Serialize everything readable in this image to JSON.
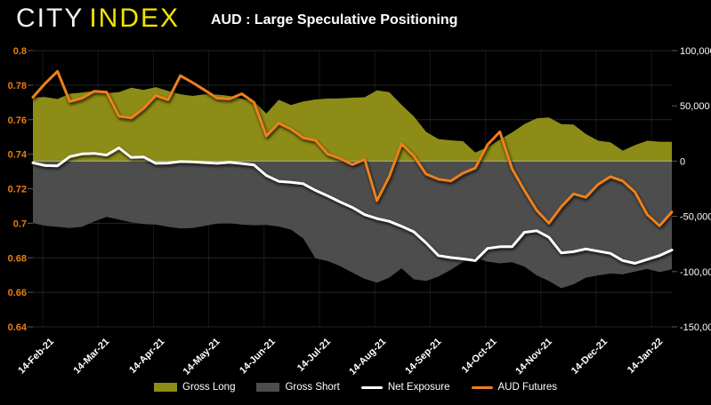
{
  "header": {
    "logo_primary": "CITY",
    "logo_secondary": "INDEX",
    "title": "AUD : Large Speculative Positioning"
  },
  "colors": {
    "background": "#000000",
    "gross_long_fill": "#8d8c17",
    "gross_short_fill": "#4d4d4d",
    "net_exposure_line": "#ffffff",
    "aud_futures_line": "#f08019",
    "left_axis_text": "#e87e0f",
    "right_axis_text": "#ffffff",
    "x_axis_text": "#ffffff",
    "grid_line": "rgba(255,255,255,0.14)",
    "zero_line": "rgba(255,255,255,0.5)"
  },
  "legend": {
    "items": [
      {
        "label": "Gross Long",
        "type": "area",
        "color": "#8d8c17"
      },
      {
        "label": "Gross Short",
        "type": "area",
        "color": "#4d4d4d"
      },
      {
        "label": "Net Exposure",
        "type": "line",
        "color": "#ffffff"
      },
      {
        "label": "AUD Futures",
        "type": "line",
        "color": "#f08019"
      }
    ]
  },
  "chart_data": {
    "type": "combo",
    "title": "AUD : Large Speculative Positioning",
    "description": "Weekly CFTC-style speculative positioning in AUD futures (right axis, contracts) vs AUD futures price (left axis), Feb 2021 - Jan 2022",
    "grid": true,
    "legend_position": "bottom",
    "x_axis": {
      "labels": [
        "14-Feb-21",
        "14-Mar-21",
        "14-Apr-21",
        "14-May-21",
        "14-Jun-21",
        "14-Jul-21",
        "14-Aug-21",
        "14-Sep-21",
        "14-Oct-21",
        "14-Nov-21",
        "14-Dec-21",
        "14-Jan-22"
      ],
      "first_tick_frac": 0.0153,
      "tick_spacing_frac": 0.08663,
      "points": 53,
      "frequency": "weekly"
    },
    "left_axis": {
      "applies_to": "AUD Futures price",
      "min": 0.64,
      "max": 0.8,
      "tick_step": 0.02,
      "labels": [
        "0.8",
        "0.78",
        "0.76",
        "0.74",
        "0.72",
        "0.7",
        "0.68",
        "0.66",
        "0.64"
      ]
    },
    "right_axis": {
      "applies_to": "Positioning (contracts)",
      "min": -150000,
      "max": 100000,
      "tick_step": 50000,
      "labels": [
        "100,000",
        "50,000",
        "0",
        "-50,000",
        "-100,000",
        "-150,000"
      ]
    },
    "series": [
      {
        "name": "Gross Long",
        "type": "area",
        "axis": "right",
        "color": "#8d8c17",
        "values": [
          57500,
          58000,
          56200,
          61000,
          62000,
          63500,
          61500,
          62500,
          66500,
          64500,
          67000,
          63500,
          60500,
          59000,
          60500,
          60200,
          59000,
          56500,
          54000,
          43000,
          55500,
          50800,
          54000,
          55800,
          56600,
          56800,
          57400,
          57800,
          64000,
          62500,
          51000,
          40500,
          26500,
          19900,
          18800,
          18000,
          7800,
          12500,
          19500,
          26000,
          33500,
          38700,
          39500,
          33500,
          33000,
          24500,
          18500,
          17000,
          9500,
          14500,
          18500,
          17500,
          17500
        ]
      },
      {
        "name": "Gross Short",
        "type": "area",
        "axis": "right",
        "color": "#4d4d4d",
        "values": [
          -56000,
          -58500,
          -59500,
          -60500,
          -59500,
          -54500,
          -50500,
          -53000,
          -55500,
          -57000,
          -57500,
          -59500,
          -61000,
          -60500,
          -58500,
          -56500,
          -56200,
          -57500,
          -58000,
          -57800,
          -59200,
          -62000,
          -70000,
          -88000,
          -90500,
          -95000,
          -101000,
          -106500,
          -110000,
          -105500,
          -97000,
          -107000,
          -108500,
          -104500,
          -98500,
          -91300,
          -87500,
          -91000,
          -92500,
          -91500,
          -95400,
          -103400,
          -108500,
          -115000,
          -111500,
          -105500,
          -103400,
          -101800,
          -102500,
          -100000,
          -97500,
          -100500,
          -98000
        ]
      },
      {
        "name": "Net Exposure",
        "type": "line",
        "axis": "right",
        "color": "#ffffff",
        "values": [
          -1500,
          -4000,
          -4300,
          4000,
          6500,
          7000,
          5500,
          12000,
          3300,
          3800,
          -2000,
          -1800,
          -400,
          -700,
          -1400,
          -2000,
          -1100,
          -2200,
          -3500,
          -13000,
          -18300,
          -19200,
          -20500,
          -26500,
          -31500,
          -37000,
          -42000,
          -48500,
          -52000,
          -54500,
          -59000,
          -64000,
          -74000,
          -85500,
          -87300,
          -88500,
          -90000,
          -79000,
          -77500,
          -77500,
          -64500,
          -63000,
          -69000,
          -83000,
          -82000,
          -79500,
          -81500,
          -83500,
          -90000,
          -92500,
          -89000,
          -85500,
          -80500
        ]
      },
      {
        "name": "AUD Futures",
        "type": "line",
        "axis": "left",
        "color": "#f08019",
        "values": [
          0.773,
          0.781,
          0.788,
          0.7705,
          0.7725,
          0.7765,
          0.776,
          0.762,
          0.761,
          0.7665,
          0.774,
          0.7715,
          0.7855,
          0.7815,
          0.777,
          0.7725,
          0.772,
          0.775,
          0.77,
          0.7505,
          0.758,
          0.7545,
          0.7495,
          0.748,
          0.74,
          0.7375,
          0.734,
          0.737,
          0.713,
          0.727,
          0.746,
          0.739,
          0.7285,
          0.7255,
          0.7245,
          0.729,
          0.732,
          0.7455,
          0.753,
          0.7315,
          0.719,
          0.7075,
          0.7,
          0.7095,
          0.717,
          0.715,
          0.7225,
          0.727,
          0.7245,
          0.718,
          0.705,
          0.6985,
          0.7065
        ]
      }
    ]
  }
}
